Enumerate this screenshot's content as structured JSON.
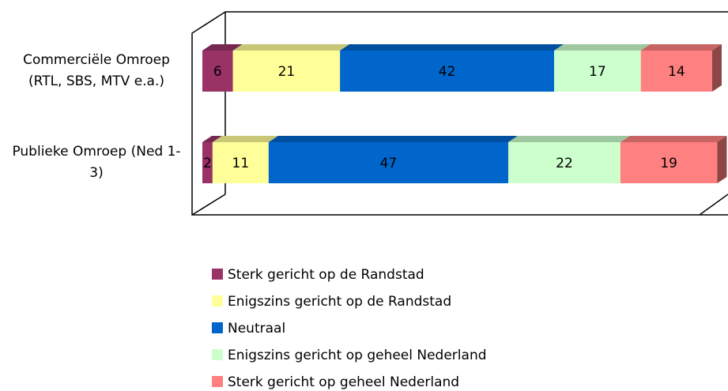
{
  "chart_data": {
    "type": "stacked-bar-3d",
    "categories": [
      "Commerciële Omroep (RTL, SBS, MTV e.a.)",
      "Publieke Omroep (Ned 1-3)"
    ],
    "series": [
      {
        "name": "Sterk gericht op de Randstad",
        "color": "#993366",
        "values": [
          6,
          2
        ]
      },
      {
        "name": "Enigszins gericht op de Randstad",
        "color": "#ffff99",
        "values": [
          21,
          11
        ]
      },
      {
        "name": "Neutraal",
        "color": "#0066cc",
        "values": [
          42,
          47
        ]
      },
      {
        "name": "Enigszins gericht op geheel Nederland",
        "color": "#ccffcc",
        "values": [
          17,
          22
        ]
      },
      {
        "name": "Sterk gericht op geheel Nederland",
        "color": "#ff8080",
        "values": [
          14,
          19
        ]
      }
    ],
    "xlim": [
      0,
      100
    ]
  }
}
